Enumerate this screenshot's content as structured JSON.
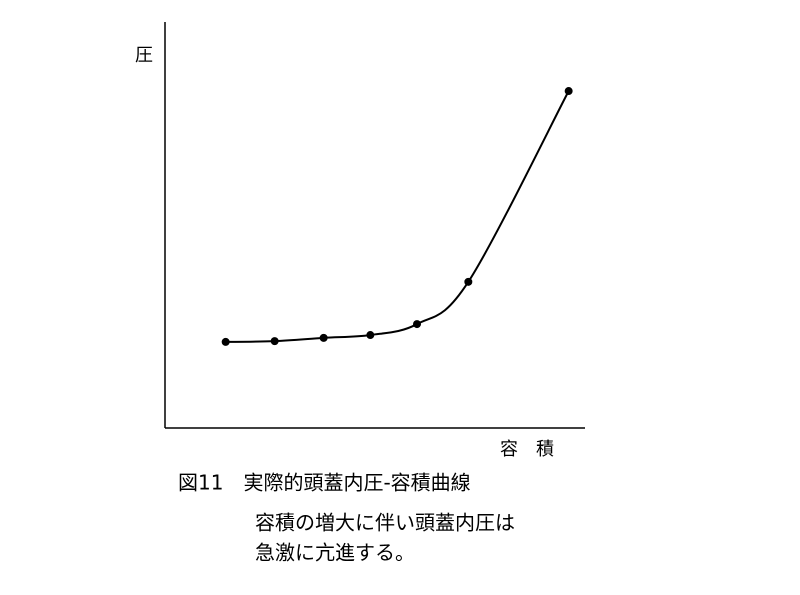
{
  "chart_data": {
    "type": "line",
    "title": "図11　実際的頭蓋内圧-容積曲線",
    "caption": [
      "容積の増大に伴い頭蓋内圧は",
      "急激に亢進する。"
    ],
    "x_label": "容　積",
    "y_label": "圧",
    "x": [
      1.3,
      2.35,
      3.4,
      4.4,
      5.4,
      6.5,
      8.65
    ],
    "values": [
      2.12,
      2.14,
      2.22,
      2.29,
      2.56,
      3.6,
      8.3
    ],
    "xlim": [
      0,
      9
    ],
    "ylim": [
      0,
      10
    ],
    "color": "#000000",
    "markers": true,
    "smooth": true
  }
}
